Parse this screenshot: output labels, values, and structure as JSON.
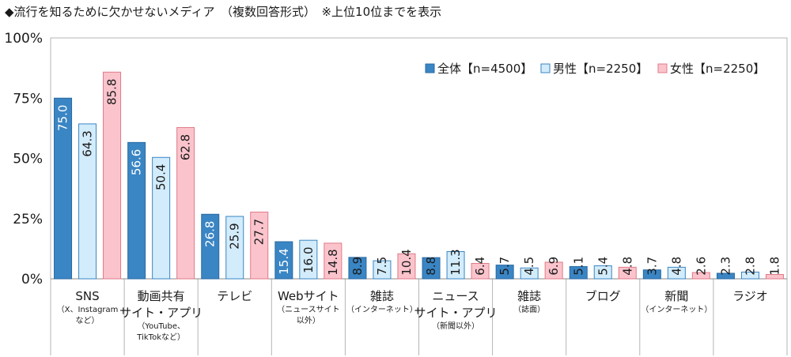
{
  "chart_data": {
    "type": "bar",
    "title": "◆流行を知るために欠かせないメディア　（複数回答形式）　※上位10位までを表示",
    "categories": [
      {
        "main": [
          "SNS"
        ],
        "sub": [
          "（X、Instagram",
          "など）"
        ]
      },
      {
        "main": [
          "動画共有",
          "サイト・アプリ"
        ],
        "sub": [
          "（YouTube、",
          "TikTokなど）"
        ]
      },
      {
        "main": [
          "テレビ"
        ],
        "sub": []
      },
      {
        "main": [
          "Webサイト"
        ],
        "sub": [
          "（ニュースサイト",
          "以外）"
        ]
      },
      {
        "main": [
          "雑誌"
        ],
        "sub": [
          "（インターネット）"
        ]
      },
      {
        "main": [
          "ニュース",
          "サイト・アプリ"
        ],
        "sub": [
          "（新聞以外）"
        ]
      },
      {
        "main": [
          "雑誌"
        ],
        "sub": [
          "（誌面）"
        ]
      },
      {
        "main": [
          "ブログ"
        ],
        "sub": []
      },
      {
        "main": [
          "新聞"
        ],
        "sub": [
          "（インターネット）"
        ]
      },
      {
        "main": [
          "ラジオ"
        ],
        "sub": []
      }
    ],
    "series": [
      {
        "name": "全体【n=4500】",
        "color": "#3a85c4",
        "stroke": "#2a6aa3",
        "label_color": "#ffffff",
        "values": [
          75.0,
          56.6,
          26.8,
          15.4,
          8.9,
          8.8,
          5.7,
          5.1,
          3.7,
          2.3
        ]
      },
      {
        "name": "男性【n=2250】",
        "color": "#d3ecfb",
        "stroke": "#3a85c4",
        "label_color": "#1a1a1a",
        "values": [
          64.3,
          50.4,
          25.9,
          16.0,
          7.5,
          11.3,
          4.5,
          5.4,
          4.8,
          2.8
        ]
      },
      {
        "name": "女性【n=2250】",
        "color": "#fbc4cc",
        "stroke": "#e07a88",
        "label_color": "#1a1a1a",
        "values": [
          85.8,
          62.8,
          27.7,
          14.8,
          10.4,
          6.4,
          6.9,
          4.8,
          2.6,
          1.8
        ]
      }
    ],
    "yticks": [
      "0%",
      "25%",
      "50%",
      "75%",
      "100%"
    ],
    "ylim": [
      0,
      100
    ],
    "legend": "top-right"
  }
}
